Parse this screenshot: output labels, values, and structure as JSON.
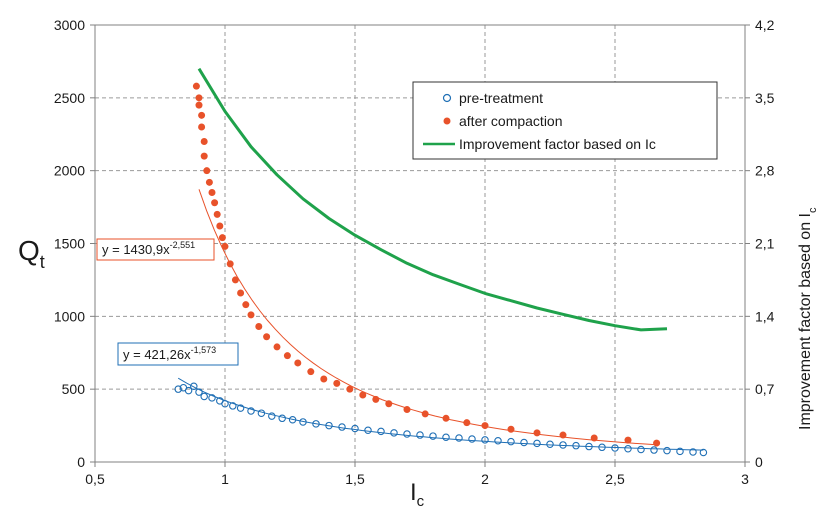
{
  "chart_data": {
    "type": "scatter",
    "title": "",
    "xlabel": "I",
    "xlabel_sub": "c",
    "ylabel": "Q",
    "ylabel_sub": "t",
    "y2label": "Improvement factor based on  I",
    "y2label_sub": "c",
    "xlim": [
      0.5,
      3
    ],
    "ylim": [
      0,
      3000
    ],
    "y2lim": [
      0,
      4.2
    ],
    "x_ticks": [
      "0,5",
      "1",
      "1,5",
      "2",
      "2,5",
      "3"
    ],
    "y_ticks": [
      "0",
      "500",
      "1000",
      "1500",
      "2000",
      "2500",
      "3000"
    ],
    "y2_ticks": [
      "0",
      "0,7",
      "1,4",
      "2,1",
      "2,8",
      "3,5",
      "4,2"
    ],
    "grid": true,
    "legend_position": "top-right",
    "colors": {
      "pre_treatment": "#1f6fb5",
      "after_compaction": "#e8522a",
      "improvement": "#1fa24b",
      "trend_pre": "#1f6fb5",
      "trend_after": "#e8522a"
    },
    "series": [
      {
        "name": "pre-treatment",
        "marker": "open-circle",
        "points": [
          [
            0.82,
            500
          ],
          [
            0.84,
            510
          ],
          [
            0.86,
            490
          ],
          [
            0.88,
            520
          ],
          [
            0.9,
            480
          ],
          [
            0.92,
            450
          ],
          [
            0.95,
            440
          ],
          [
            0.98,
            420
          ],
          [
            1.0,
            400
          ],
          [
            1.03,
            385
          ],
          [
            1.06,
            370
          ],
          [
            1.1,
            350
          ],
          [
            1.14,
            335
          ],
          [
            1.18,
            315
          ],
          [
            1.22,
            300
          ],
          [
            1.26,
            290
          ],
          [
            1.3,
            275
          ],
          [
            1.35,
            262
          ],
          [
            1.4,
            250
          ],
          [
            1.45,
            240
          ],
          [
            1.5,
            230
          ],
          [
            1.55,
            218
          ],
          [
            1.6,
            210
          ],
          [
            1.65,
            200
          ],
          [
            1.7,
            192
          ],
          [
            1.75,
            185
          ],
          [
            1.8,
            178
          ],
          [
            1.85,
            170
          ],
          [
            1.9,
            165
          ],
          [
            1.95,
            158
          ],
          [
            2.0,
            152
          ],
          [
            2.05,
            146
          ],
          [
            2.1,
            140
          ],
          [
            2.15,
            134
          ],
          [
            2.2,
            128
          ],
          [
            2.25,
            122
          ],
          [
            2.3,
            117
          ],
          [
            2.35,
            112
          ],
          [
            2.4,
            106
          ],
          [
            2.45,
            101
          ],
          [
            2.5,
            96
          ],
          [
            2.55,
            91
          ],
          [
            2.6,
            86
          ],
          [
            2.65,
            82
          ],
          [
            2.7,
            78
          ],
          [
            2.75,
            73
          ],
          [
            2.8,
            69
          ],
          [
            2.84,
            65
          ]
        ]
      },
      {
        "name": "after compaction",
        "marker": "filled-circle",
        "points": [
          [
            0.89,
            2580
          ],
          [
            0.9,
            2500
          ],
          [
            0.9,
            2450
          ],
          [
            0.91,
            2380
          ],
          [
            0.91,
            2300
          ],
          [
            0.92,
            2200
          ],
          [
            0.92,
            2100
          ],
          [
            0.93,
            2000
          ],
          [
            0.94,
            1920
          ],
          [
            0.95,
            1850
          ],
          [
            0.96,
            1780
          ],
          [
            0.97,
            1700
          ],
          [
            0.98,
            1620
          ],
          [
            0.99,
            1540
          ],
          [
            1.0,
            1480
          ],
          [
            1.02,
            1360
          ],
          [
            1.04,
            1250
          ],
          [
            1.06,
            1160
          ],
          [
            1.08,
            1080
          ],
          [
            1.1,
            1010
          ],
          [
            1.13,
            930
          ],
          [
            1.16,
            860
          ],
          [
            1.2,
            790
          ],
          [
            1.24,
            730
          ],
          [
            1.28,
            680
          ],
          [
            1.33,
            620
          ],
          [
            1.38,
            570
          ],
          [
            1.43,
            540
          ],
          [
            1.48,
            500
          ],
          [
            1.53,
            460
          ],
          [
            1.58,
            430
          ],
          [
            1.63,
            400
          ],
          [
            1.7,
            360
          ],
          [
            1.77,
            330
          ],
          [
            1.85,
            300
          ],
          [
            1.93,
            270
          ],
          [
            2.0,
            250
          ],
          [
            2.1,
            225
          ],
          [
            2.2,
            200
          ],
          [
            2.3,
            185
          ],
          [
            2.42,
            165
          ],
          [
            2.55,
            150
          ],
          [
            2.66,
            130
          ]
        ]
      },
      {
        "name": "Improvement factor based on Ic",
        "axis": "y2",
        "type": "line",
        "points": [
          [
            0.9,
            3.78
          ],
          [
            1.0,
            3.37
          ],
          [
            1.1,
            3.03
          ],
          [
            1.2,
            2.76
          ],
          [
            1.3,
            2.53
          ],
          [
            1.4,
            2.34
          ],
          [
            1.5,
            2.18
          ],
          [
            1.6,
            2.04
          ],
          [
            1.7,
            1.91
          ],
          [
            1.8,
            1.8
          ],
          [
            1.9,
            1.71
          ],
          [
            2.0,
            1.62
          ],
          [
            2.1,
            1.55
          ],
          [
            2.2,
            1.48
          ],
          [
            2.3,
            1.42
          ],
          [
            2.4,
            1.36
          ],
          [
            2.5,
            1.31
          ],
          [
            2.6,
            1.27
          ],
          [
            2.7,
            1.28
          ]
        ]
      }
    ],
    "trendlines": [
      {
        "series": "after compaction",
        "equation_main": "y = 1430,9x",
        "equation_exp": "-2,551",
        "coef": 1430.9,
        "exponent": -2.551,
        "x_range": [
          0.9,
          2.66
        ]
      },
      {
        "series": "pre-treatment",
        "equation_main": "y = 421,26x",
        "equation_exp": "-1,573",
        "coef": 421.26,
        "exponent": -1.573,
        "x_range": [
          0.82,
          2.84
        ]
      }
    ]
  }
}
